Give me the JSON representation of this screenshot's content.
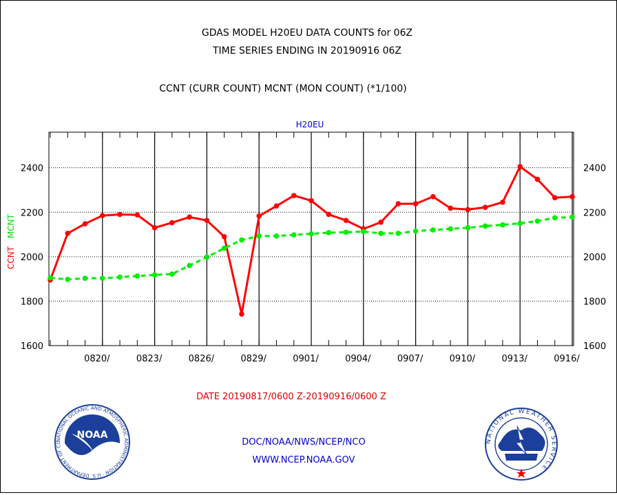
{
  "header": {
    "line1": "GDAS MODEL H20EU DATA COUNTS for 06Z",
    "line2": "TIME SERIES ENDING IN 20190916 06Z",
    "line3": "CCNT (CURR COUNT) MCNT (MON COUNT) (*1/100)"
  },
  "footer": {
    "date_range": "DATE 20190817/0600 Z-20190916/0600 Z",
    "org": "DOC/NOAA/NWS/NCEP/NCO",
    "url": "WWW.NCEP.NOAA.GOV"
  },
  "logos": {
    "noaa": {
      "text": "NOAA",
      "ring_text": "NATIONAL OCEANIC AND ATMOSPHERIC ADMINISTRATION · U.S. DEPARTMENT OF COMMERCE"
    },
    "nws": {
      "ring_text": "NATIONAL WEATHER SERVICE"
    }
  },
  "chart_data": {
    "type": "line",
    "title": "H20EU",
    "ylabel_left": [
      "CCNT",
      "MCNT"
    ],
    "ylim": [
      1600,
      2560
    ],
    "yticks": [
      1600,
      1800,
      2000,
      2200,
      2400
    ],
    "xlim": [
      0,
      30
    ],
    "x_tick_labels": [
      {
        "label": "0820/",
        "x": 3
      },
      {
        "label": "0823/",
        "x": 6
      },
      {
        "label": "0826/",
        "x": 9
      },
      {
        "label": "0829/",
        "x": 12
      },
      {
        "label": "0901/",
        "x": 15
      },
      {
        "label": "0904/",
        "x": 18
      },
      {
        "label": "0907/",
        "x": 21
      },
      {
        "label": "0910/",
        "x": 24
      },
      {
        "label": "0913/",
        "x": 27
      },
      {
        "label": "0916/",
        "x": 30
      }
    ],
    "grid": true,
    "series": [
      {
        "name": "CCNT",
        "color": "#ff0000",
        "values": [
          1895,
          2105,
          2148,
          2185,
          2190,
          2188,
          2130,
          2153,
          2178,
          2163,
          2090,
          1742,
          2183,
          2228,
          2275,
          2252,
          2190,
          2163,
          2125,
          2155,
          2238,
          2238,
          2270,
          2218,
          2212,
          2222,
          2245,
          2405,
          2348,
          2265,
          2270
        ]
      },
      {
        "name": "MCNT",
        "color": "#00ee00",
        "values": [
          1905,
          1898,
          1903,
          1903,
          1908,
          1913,
          1918,
          1922,
          1960,
          1998,
          2038,
          2075,
          2093,
          2093,
          2098,
          2103,
          2108,
          2110,
          2113,
          2105,
          2105,
          2115,
          2120,
          2125,
          2130,
          2138,
          2143,
          2150,
          2160,
          2175,
          2178
        ]
      }
    ]
  }
}
